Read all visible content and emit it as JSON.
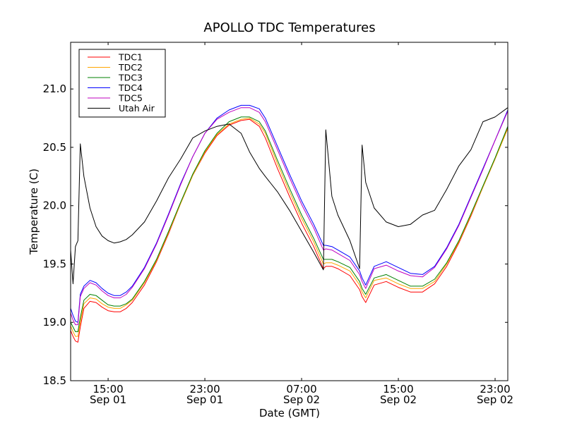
{
  "chart_data": {
    "type": "line",
    "title": "APOLLO TDC Temperatures",
    "xlabel": "Date (GMT)",
    "ylabel": "Temperature (C)",
    "x_unit": "hours since 00:00 Sep 01 (GMT)",
    "xlim": [
      11.9,
      48.05
    ],
    "ylim": [
      18.5,
      21.4
    ],
    "grid": false,
    "legend_position": "top-left",
    "yticks": [
      {
        "value": 18.5,
        "label": "18.5"
      },
      {
        "value": 19.0,
        "label": "19.0"
      },
      {
        "value": 19.5,
        "label": "19.5"
      },
      {
        "value": 20.0,
        "label": "20.0"
      },
      {
        "value": 20.5,
        "label": "20.5"
      },
      {
        "value": 21.0,
        "label": "21.0"
      }
    ],
    "xticks": [
      {
        "value": 15,
        "label_time": "15:00",
        "label_date": "Sep 01"
      },
      {
        "value": 23,
        "label_time": "23:00",
        "label_date": "Sep 01"
      },
      {
        "value": 31,
        "label_time": "07:00",
        "label_date": "Sep 02"
      },
      {
        "value": 39,
        "label_time": "15:00",
        "label_date": "Sep 02"
      },
      {
        "value": 47,
        "label_time": "23:00",
        "label_date": "Sep 02"
      }
    ],
    "x": [
      11.9,
      12.1,
      12.3,
      12.5,
      12.7,
      13.0,
      13.5,
      14.0,
      14.5,
      15.0,
      15.5,
      16.0,
      16.5,
      17.0,
      18.0,
      19.0,
      20.0,
      21.0,
      22.0,
      23.0,
      24.0,
      25.0,
      26.0,
      26.7,
      27.5,
      28.0,
      29.0,
      30.0,
      31.0,
      32.0,
      32.8,
      33.0,
      33.5,
      34.0,
      35.0,
      35.8,
      36.0,
      36.3,
      37.0,
      38.0,
      39.0,
      40.0,
      41.0,
      42.0,
      43.0,
      44.0,
      45.0,
      46.0,
      47.0,
      48.05
    ],
    "series": [
      {
        "name": "TDC1",
        "color": "#ff0000",
        "values": [
          18.93,
          18.88,
          18.84,
          18.83,
          18.96,
          19.12,
          19.18,
          19.17,
          19.13,
          19.1,
          19.09,
          19.09,
          19.12,
          19.17,
          19.32,
          19.52,
          19.76,
          20.02,
          20.26,
          20.45,
          20.6,
          20.69,
          20.73,
          20.74,
          20.68,
          20.58,
          20.32,
          20.08,
          19.85,
          19.65,
          19.46,
          19.48,
          19.48,
          19.46,
          19.4,
          19.28,
          19.22,
          19.17,
          19.32,
          19.35,
          19.3,
          19.26,
          19.26,
          19.33,
          19.48,
          19.68,
          19.91,
          20.16,
          20.4,
          20.67
        ]
      },
      {
        "name": "TDC2",
        "color": "#ffa500",
        "values": [
          18.97,
          18.92,
          18.88,
          18.88,
          19.0,
          19.16,
          19.21,
          19.2,
          19.16,
          19.13,
          19.12,
          19.12,
          19.15,
          19.19,
          19.34,
          19.53,
          19.77,
          20.02,
          20.26,
          20.46,
          20.61,
          20.7,
          20.74,
          20.75,
          20.7,
          20.62,
          20.36,
          20.12,
          19.89,
          19.69,
          19.5,
          19.51,
          19.51,
          19.49,
          19.44,
          19.32,
          19.26,
          19.21,
          19.36,
          19.38,
          19.33,
          19.29,
          19.29,
          19.35,
          19.5,
          19.69,
          19.92,
          20.16,
          20.4,
          20.66
        ]
      },
      {
        "name": "TDC3",
        "color": "#008000",
        "values": [
          19.0,
          18.96,
          18.92,
          18.92,
          19.04,
          19.19,
          19.24,
          19.23,
          19.19,
          19.15,
          19.14,
          19.14,
          19.16,
          19.2,
          19.35,
          19.54,
          19.78,
          20.03,
          20.27,
          20.47,
          20.62,
          20.72,
          20.76,
          20.76,
          20.72,
          20.64,
          20.39,
          20.15,
          19.92,
          19.72,
          19.54,
          19.54,
          19.54,
          19.52,
          19.47,
          19.35,
          19.29,
          19.24,
          19.38,
          19.41,
          19.36,
          19.31,
          19.31,
          19.37,
          19.51,
          19.7,
          19.93,
          20.17,
          20.41,
          20.68
        ]
      },
      {
        "name": "TDC4",
        "color": "#0000ff",
        "values": [
          19.12,
          19.06,
          19.01,
          19.0,
          19.24,
          19.31,
          19.36,
          19.34,
          19.29,
          19.25,
          19.23,
          19.23,
          19.26,
          19.31,
          19.47,
          19.68,
          19.93,
          20.19,
          20.42,
          20.62,
          20.75,
          20.82,
          20.86,
          20.86,
          20.83,
          20.75,
          20.51,
          20.27,
          20.04,
          19.84,
          19.66,
          19.66,
          19.65,
          19.62,
          19.56,
          19.44,
          19.38,
          19.32,
          19.48,
          19.52,
          19.47,
          19.42,
          19.41,
          19.48,
          19.64,
          19.84,
          20.08,
          20.32,
          20.56,
          20.82
        ]
      },
      {
        "name": "TDC5",
        "color": "#bf00bf",
        "values": [
          19.08,
          19.02,
          18.98,
          18.98,
          19.22,
          19.29,
          19.34,
          19.32,
          19.27,
          19.23,
          19.21,
          19.21,
          19.24,
          19.3,
          19.46,
          19.67,
          19.92,
          20.18,
          20.42,
          20.62,
          20.74,
          20.8,
          20.84,
          20.84,
          20.8,
          20.72,
          20.48,
          20.24,
          20.01,
          19.81,
          19.62,
          19.63,
          19.62,
          19.59,
          19.53,
          19.41,
          19.35,
          19.29,
          19.46,
          19.49,
          19.44,
          19.4,
          19.39,
          19.47,
          19.63,
          19.83,
          20.07,
          20.31,
          20.56,
          20.81
        ]
      },
      {
        "name": "Utah Air",
        "color": "#000000",
        "values": [
          19.62,
          19.33,
          19.65,
          19.7,
          20.53,
          20.25,
          19.98,
          19.82,
          19.74,
          19.7,
          19.68,
          19.69,
          19.71,
          19.75,
          19.86,
          20.04,
          20.24,
          20.4,
          20.58,
          20.64,
          20.68,
          20.7,
          20.62,
          20.46,
          20.32,
          20.25,
          20.12,
          19.96,
          19.78,
          19.6,
          19.45,
          20.65,
          20.08,
          19.92,
          19.7,
          19.46,
          20.52,
          20.2,
          19.98,
          19.86,
          19.82,
          19.84,
          19.92,
          19.96,
          20.14,
          20.34,
          20.48,
          20.72,
          20.76,
          20.84
        ]
      }
    ]
  }
}
